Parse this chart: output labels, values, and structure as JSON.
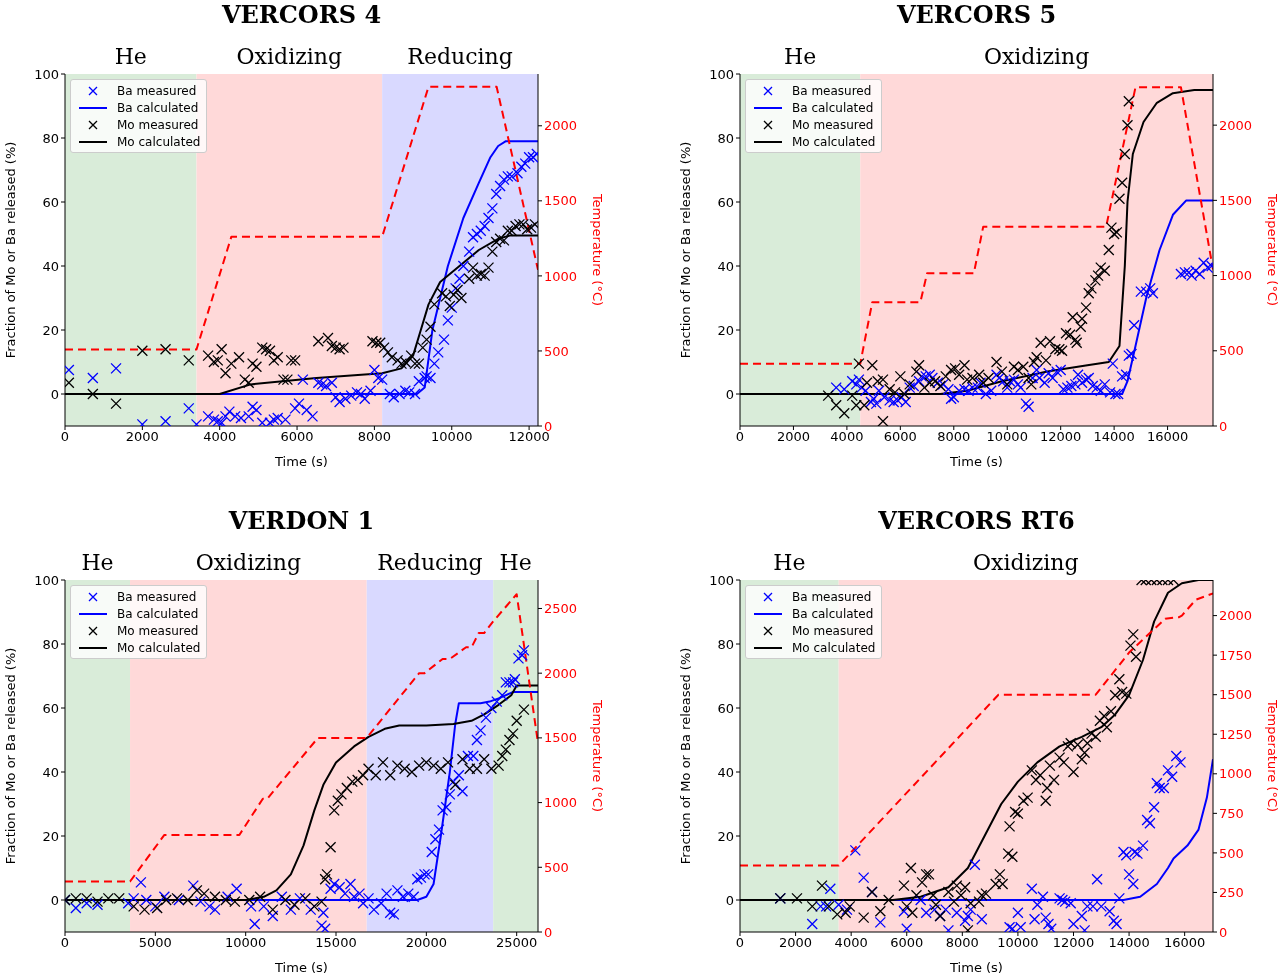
{
  "chart_data": [
    {
      "type": "line",
      "title": "VERCORS 4",
      "xlabel": "Time (s)",
      "ylabel": "Fraction of Mo or Ba released (%)",
      "y2label": "Temperature (°C)",
      "xlim": [
        0,
        12230
      ],
      "xticks": [
        0,
        2000,
        4000,
        6000,
        8000,
        10000,
        12000
      ],
      "ylim": [
        -10,
        100
      ],
      "yticks": [
        0,
        20,
        40,
        60,
        80,
        100
      ],
      "y2lim": [
        0,
        2345
      ],
      "y2ticks": [
        0,
        500,
        1000,
        1500,
        2000
      ],
      "legend": "top left",
      "bands": [
        {
          "axis": "x",
          "from": 0,
          "to": 3400,
          "label": "He",
          "color": "#d9ecd9"
        },
        {
          "axis": "x",
          "from": 3400,
          "to": 8200,
          "label": "Oxidizing",
          "color": "#ffd9d9"
        },
        {
          "axis": "x",
          "from": 8200,
          "to": 12230,
          "label": "Reducing",
          "color": "#d9d9ff"
        }
      ],
      "series": [
        {
          "name": "Ba measured",
          "type": "scatter",
          "marker": "cross",
          "color": "#0000ff",
          "x": [
            100,
            720,
            1320,
            2000,
            2600,
            3200,
            3400,
            3700,
            3850,
            3950,
            4050,
            4150,
            4250,
            4400,
            4550,
            4750,
            4850,
            4950,
            5100,
            5300,
            5400,
            5500,
            5700,
            5950,
            6050,
            6150,
            6250,
            6400,
            6550,
            6650,
            6750,
            6900,
            7000,
            7100,
            7250,
            7400,
            7550,
            7650,
            7750,
            7900,
            8000,
            8100,
            8200,
            8400,
            8500,
            8650,
            8800,
            8900,
            9050,
            9150,
            9300,
            9350,
            9450,
            9550,
            9650,
            9800,
            9900,
            10000,
            10100,
            10200,
            10300,
            10450,
            10550,
            10650,
            10750,
            10850,
            10950,
            11050,
            11150,
            11250,
            11350,
            11450,
            11550,
            11700,
            11800,
            11900,
            12000,
            12100,
            12200
          ],
          "values": [
            7.5,
            5,
            8,
            -9.5,
            -8.5,
            -4.5,
            -9.5,
            -7,
            -8,
            -8.5,
            -9,
            -7,
            -5.5,
            -7,
            -7.5,
            -7,
            -4,
            -5,
            -9,
            -9,
            -8,
            -7.5,
            -8,
            -4.5,
            -3,
            4.5,
            -5,
            -7,
            3.5,
            3,
            2.5,
            3.5,
            -1,
            -2.5,
            -1.5,
            -0.5,
            0.5,
            0,
            -1.5,
            1,
            7.5,
            5,
            4.5,
            0,
            -1,
            0,
            1,
            0.5,
            0,
            4,
            5,
            5.5,
            5,
            9.5,
            13,
            17,
            23,
            27,
            33,
            36,
            40,
            44.5,
            49,
            50,
            51,
            52.5,
            55,
            58,
            62.5,
            65,
            67,
            68,
            68,
            69,
            71,
            72,
            74,
            74,
            75
          ]
        },
        {
          "name": "Ba calculated",
          "type": "line",
          "marker": "none",
          "line_style": "solid",
          "color": "#0000ff",
          "x": [
            0,
            9100,
            9300,
            9500,
            9900,
            10300,
            10700,
            11000,
            11200,
            11400,
            12230
          ],
          "values": [
            0,
            0,
            2,
            20,
            40,
            55,
            66,
            74,
            77.5,
            79,
            79
          ]
        },
        {
          "name": "Mo measured",
          "type": "scatter",
          "marker": "cross",
          "color": "#000000",
          "x": [
            100,
            720,
            1320,
            2000,
            2600,
            3200,
            3700,
            3850,
            3950,
            4050,
            4150,
            4300,
            4500,
            4650,
            4750,
            4850,
            4950,
            5100,
            5200,
            5300,
            5400,
            5500,
            5650,
            5750,
            5850,
            5950,
            6550,
            6800,
            6900,
            7000,
            7100,
            7200,
            7950,
            8050,
            8150,
            8250,
            8350,
            8450,
            8600,
            8700,
            8800,
            8950,
            9050,
            9150,
            9250,
            9350,
            9450,
            9550,
            9750,
            9850,
            9950,
            10050,
            10150,
            10250,
            10450,
            10550,
            10650,
            10750,
            10850,
            10950,
            11050,
            11150,
            11250,
            11350,
            11450,
            11550,
            11650,
            11750,
            11850,
            11950,
            12050,
            12150
          ],
          "values": [
            3.5,
            0,
            -3,
            13.5,
            14,
            10.5,
            12,
            10,
            10.5,
            14,
            6.5,
            9.5,
            11.5,
            4.5,
            3.5,
            9.5,
            8.5,
            14.5,
            14,
            13.5,
            10.5,
            11.5,
            4.5,
            4.5,
            10.5,
            10.5,
            16.5,
            17.5,
            15,
            14.5,
            14,
            14.5,
            16.5,
            16,
            16,
            14.5,
            13,
            11.5,
            10.5,
            9.5,
            10,
            12,
            9.5,
            9.5,
            14.5,
            17,
            21,
            28,
            31.5,
            30.5,
            27.5,
            31,
            32.5,
            30,
            36,
            39.5,
            37,
            37.5,
            37,
            39.5,
            44.5,
            47.5,
            48.5,
            48,
            51,
            51,
            52.5,
            53,
            53,
            51.5,
            52,
            53
          ]
        },
        {
          "name": "Mo calculated",
          "type": "line",
          "marker": "none",
          "line_style": "solid",
          "color": "#000000",
          "x": [
            0,
            4000,
            4800,
            6500,
            8200,
            8700,
            9000,
            9200,
            9400,
            9700,
            10200,
            10700,
            11200,
            11500,
            12230
          ],
          "values": [
            0,
            0,
            3,
            5,
            6.5,
            8,
            12,
            20,
            28,
            35,
            40,
            45,
            48.5,
            49.5,
            49.5
          ]
        },
        {
          "type": "line",
          "axis": "y2",
          "marker": "none",
          "line_style": "dashed",
          "color": "#ff0000",
          "x": [
            0,
            3400,
            4300,
            8200,
            9400,
            11160,
            12230
          ],
          "values": [
            510,
            510,
            1260,
            1260,
            2260,
            2260,
            1040
          ]
        }
      ]
    },
    {
      "type": "line",
      "title": "VERCORS 5",
      "xlabel": "Time (s)",
      "ylabel": "Fraction of Mo or Ba released (%)",
      "y2label": "Temperature (°C)",
      "xlim": [
        0,
        17700
      ],
      "xticks": [
        0,
        2000,
        4000,
        6000,
        8000,
        10000,
        12000,
        14000,
        16000
      ],
      "ylim": [
        -10,
        100
      ],
      "yticks": [
        0,
        20,
        40,
        60,
        80,
        100
      ],
      "y2lim": [
        0,
        2340
      ],
      "y2ticks": [
        0,
        500,
        1000,
        1500,
        2000
      ],
      "legend": "top left",
      "bands": [
        {
          "axis": "x",
          "from": 0,
          "to": 4500,
          "label": "He",
          "color": "#d9ecd9"
        },
        {
          "axis": "x",
          "from": 4500,
          "to": 17700,
          "label": "Oxidizing",
          "color": "#ffd9d9"
        }
      ],
      "series": [
        {
          "name": "Ba measured",
          "type": "scatter",
          "marker": "cross",
          "color": "#0000ff",
          "x": [
            3600,
            3900,
            4200,
            4350,
            4450,
            4550,
            4700,
            4900,
            5000,
            5100,
            5200,
            5400,
            5600,
            5750,
            5900,
            6050,
            6200,
            6350,
            6500,
            6700,
            6800,
            6950,
            7100,
            7200,
            7400,
            7600,
            7800,
            7900,
            8000,
            8200,
            8400,
            8550,
            8700,
            8900,
            9000,
            9200,
            9400,
            9600,
            9700,
            9850,
            10000,
            10100,
            10250,
            10400,
            10500,
            10700,
            10800,
            10950,
            11100,
            11200,
            11400,
            11550,
            11700,
            11850,
            12000,
            12100,
            12250,
            12400,
            12550,
            12650,
            12800,
            12950,
            13050,
            13200,
            13350,
            13500,
            13650,
            13850,
            13950,
            14050,
            14150,
            14300,
            14450,
            14550,
            14650,
            14750,
            15000,
            15200,
            15350,
            15450,
            16500,
            16650,
            16800,
            16900,
            17050,
            17200,
            17350,
            17500,
            17650
          ],
          "values": [
            2,
            1.5,
            4,
            3,
            4.5,
            2,
            1,
            -2.5,
            -1.5,
            -3,
            1,
            -1,
            -2,
            -2.5,
            -2,
            -1,
            -2.5,
            2,
            2.5,
            4,
            5.5,
            5.5,
            6,
            5,
            3.5,
            3,
            1.5,
            -1.5,
            -1,
            1,
            1.5,
            1,
            2,
            2,
            3.5,
            0,
            1,
            6,
            5,
            4,
            2,
            4,
            4.5,
            3,
            2,
            -3,
            -4,
            5,
            7.5,
            5,
            3.5,
            6.5,
            5,
            7,
            7.5,
            1.5,
            2,
            2.5,
            3,
            6,
            3.5,
            4.5,
            5,
            2.5,
            2,
            1,
            3,
            0.5,
            9.5,
            0,
            0,
            5.5,
            6,
            12,
            12.5,
            21.5,
            32,
            32,
            33,
            31.5,
            37.5,
            38,
            38,
            37,
            38.5,
            37.5,
            41,
            39.5,
            40
          ]
        },
        {
          "name": "Ba calculated",
          "type": "line",
          "marker": "none",
          "line_style": "solid",
          "color": "#0000ff",
          "x": [
            0,
            14300,
            14500,
            14800,
            15200,
            15700,
            16200,
            16700,
            17700
          ],
          "values": [
            0,
            0,
            4,
            15,
            30,
            45,
            56,
            60.5,
            60.5
          ]
        },
        {
          "name": "Mo measured",
          "type": "scatter",
          "marker": "cross",
          "color": "#000000",
          "x": [
            3300,
            3600,
            3900,
            4200,
            4350,
            4450,
            4650,
            4750,
            4950,
            5150,
            5350,
            5350,
            5600,
            5800,
            6000,
            6150,
            6350,
            6600,
            6700,
            6900,
            7100,
            7300,
            7500,
            7700,
            7900,
            8050,
            8200,
            8400,
            8500,
            8700,
            8950,
            9100,
            9300,
            9600,
            9800,
            10000,
            10250,
            10400,
            10600,
            10800,
            10900,
            11000,
            11100,
            11250,
            11450,
            11600,
            11800,
            11950,
            12050,
            12200,
            12350,
            12450,
            12550,
            12600,
            12750,
            12800,
            12950,
            13050,
            13150,
            13300,
            13400,
            13500,
            13650,
            13800,
            13900,
            14000,
            14100,
            14200,
            14300,
            14400,
            14500,
            14550
          ],
          "values": [
            -0.5,
            -3.5,
            -6,
            -0.5,
            -3.5,
            9.5,
            -3.5,
            3.5,
            9,
            4,
            -8.5,
            4.5,
            1.5,
            0.5,
            5.5,
            0,
            3,
            7,
            9,
            2,
            3.5,
            4,
            2.5,
            5.5,
            7.5,
            8,
            6,
            9,
            4.5,
            5,
            6,
            3.5,
            5,
            10,
            7,
            3,
            8.5,
            7.5,
            8.5,
            5,
            3,
            10,
            11.5,
            16,
            10.5,
            16.5,
            14,
            14,
            13.5,
            19,
            18.5,
            24,
            17,
            16,
            21,
            23.5,
            27,
            31.5,
            33,
            35.5,
            37,
            39.5,
            38.5,
            45,
            52,
            50,
            50.5,
            61,
            66,
            75,
            84,
            91.5
          ]
        },
        {
          "name": "Mo calculated",
          "type": "line",
          "marker": "none",
          "line_style": "solid",
          "color": "#000000",
          "x": [
            0,
            7500,
            8500,
            9800,
            11500,
            13000,
            13800,
            14200,
            14400,
            14500,
            14700,
            15100,
            15600,
            16200,
            17000,
            17700
          ],
          "values": [
            0,
            0,
            1,
            4,
            7,
            9,
            10,
            15,
            40,
            60,
            75,
            85,
            91,
            94,
            95,
            95
          ]
        },
        {
          "type": "line",
          "axis": "y2",
          "marker": "none",
          "line_style": "dashed",
          "color": "#ff0000",
          "x": [
            0,
            4500,
            4950,
            6750,
            7000,
            8750,
            9100,
            13700,
            14800,
            16500,
            17700
          ],
          "values": [
            414,
            414,
            823,
            823,
            1015,
            1015,
            1324,
            1324,
            2252,
            2252,
            1041
          ]
        }
      ]
    },
    {
      "type": "line",
      "title": "VERDON 1",
      "xlabel": "Time (s)",
      "ylabel": "Fraction of Mo or Ba released (%)",
      "y2label": "Temperature (°C)",
      "xlim": [
        0,
        26180
      ],
      "xticks": [
        0,
        5000,
        10000,
        15000,
        20000,
        25000
      ],
      "ylim": [
        -10,
        100
      ],
      "yticks": [
        0,
        20,
        40,
        60,
        80,
        100
      ],
      "y2lim": [
        0,
        2720
      ],
      "y2ticks": [
        0,
        500,
        1000,
        1500,
        2000,
        2500
      ],
      "legend": "top left",
      "bands": [
        {
          "axis": "x",
          "from": 0,
          "to": 3600,
          "label": "He",
          "color": "#d9ecd9"
        },
        {
          "axis": "x",
          "from": 3600,
          "to": 16700,
          "label": "Oxidizing",
          "color": "#ffd9d9"
        },
        {
          "axis": "x",
          "from": 16700,
          "to": 23700,
          "label": "Reducing",
          "color": "#d9d9ff"
        },
        {
          "axis": "x",
          "from": 23700,
          "to": 26180,
          "label": "He",
          "color": "#d9ecd9"
        }
      ],
      "series": [
        {
          "name": "Ba measured",
          "type": "scatter",
          "marker": "cross",
          "color": "#0000ff",
          "x": [
            0,
            600,
            1200,
            1800,
            3500,
            3800,
            4200,
            4500,
            5000,
            5500,
            6300,
            7100,
            7500,
            8000,
            8300,
            9000,
            9500,
            10300,
            10500,
            11000,
            11500,
            12000,
            12500,
            13000,
            13600,
            14200,
            14300,
            14400,
            14700,
            14900,
            15200,
            15500,
            15800,
            16000,
            16300,
            16500,
            16800,
            17100,
            17500,
            17800,
            18000,
            18200,
            18400,
            18700,
            19000,
            19300,
            19500,
            19700,
            19900,
            20100,
            20300,
            20500,
            20700,
            20900,
            21100,
            21300,
            21500,
            21800,
            22000,
            22300,
            22600,
            22800,
            23000,
            23300,
            23600,
            23900,
            24200,
            24400,
            24600,
            24800,
            24900,
            25100,
            25300,
            25400
          ],
          "values": [
            0,
            -2.5,
            -1,
            -1.5,
            -1,
            0.5,
            5.5,
            0,
            -2,
            1,
            0,
            4.5,
            -0.5,
            -2,
            -3,
            1,
            3.5,
            -2,
            -7.5,
            -2,
            -5,
            1,
            -3,
            0.5,
            -3,
            -8,
            -4,
            -9,
            3.5,
            5,
            4,
            2,
            5,
            1,
            2,
            -1,
            0.5,
            -3,
            -1,
            2,
            -4,
            -4.5,
            3,
            1,
            2,
            1,
            6.5,
            7,
            8,
            8,
            15,
            19,
            22,
            28,
            29,
            33,
            37,
            39,
            34,
            45,
            45,
            50,
            53,
            57,
            60,
            62,
            64,
            68,
            68,
            68,
            69,
            75.5,
            76.5,
            78
          ]
        },
        {
          "name": "Ba calculated",
          "type": "line",
          "marker": "none",
          "line_style": "solid",
          "color": "#0000ff",
          "x": [
            0,
            19500,
            20000,
            20400,
            20800,
            21300,
            21600,
            21800,
            23000,
            23500,
            24000,
            24800,
            26180
          ],
          "values": [
            0,
            0,
            1,
            5,
            20,
            40,
            55,
            61.5,
            61.5,
            62,
            63,
            65,
            65
          ]
        },
        {
          "name": "Mo measured",
          "type": "scatter",
          "marker": "cross",
          "color": "#000000",
          "x": [
            0,
            600,
            1200,
            1800,
            2400,
            3000,
            3800,
            4400,
            5100,
            5600,
            6200,
            6800,
            7300,
            7700,
            8300,
            8900,
            9400,
            10200,
            10800,
            11500,
            12200,
            12700,
            13300,
            13800,
            14200,
            14400,
            14500,
            14700,
            14900,
            15100,
            15300,
            15600,
            15900,
            16200,
            16500,
            16800,
            17200,
            17600,
            18000,
            18400,
            18800,
            19200,
            19600,
            20000,
            20400,
            20800,
            21200,
            21600,
            22000,
            22400,
            22800,
            23200,
            23600,
            24000,
            24200,
            24400,
            24600,
            24800,
            25000,
            25400
          ],
          "values": [
            0,
            0.5,
            0.5,
            -0.5,
            0.5,
            0.5,
            -2,
            -3,
            -2.5,
            0,
            0.5,
            0,
            3,
            2,
            1,
            0,
            -0.5,
            0,
            1,
            -3,
            0,
            -1.5,
            0.5,
            -2,
            -0.5,
            6.5,
            8,
            16.5,
            28,
            31,
            33,
            35,
            37,
            37.5,
            39,
            41,
            39,
            43,
            39,
            42,
            41,
            40,
            42,
            43,
            42,
            41,
            43,
            36,
            44,
            41,
            41,
            44,
            41,
            42,
            45,
            47,
            50,
            52,
            56,
            59.5
          ]
        },
        {
          "name": "Mo calculated",
          "type": "line",
          "marker": "none",
          "line_style": "solid",
          "color": "#000000",
          "x": [
            0,
            10000,
            11000,
            11700,
            12500,
            13200,
            13800,
            14300,
            15000,
            16000,
            16800,
            17700,
            18500,
            20000,
            21500,
            22500,
            23200,
            24000,
            24700,
            25000,
            26180
          ],
          "values": [
            0,
            0,
            1,
            3,
            8,
            17,
            28,
            36,
            43,
            48,
            51,
            53.5,
            54.5,
            54.5,
            55,
            56,
            58,
            61,
            64,
            67,
            67
          ]
        },
        {
          "type": "line",
          "axis": "y2",
          "marker": "none",
          "line_style": "dashed",
          "color": "#ff0000",
          "x": [
            0,
            3600,
            5500,
            9650,
            10950,
            11200,
            14000,
            16700,
            19600,
            19900,
            20900,
            21300,
            22200,
            22500,
            22900,
            23200,
            23700,
            25000,
            26180
          ],
          "values": [
            390,
            390,
            750,
            750,
            1030,
            1030,
            1500,
            1500,
            2000,
            2000,
            2110,
            2110,
            2200,
            2200,
            2310,
            2310,
            2400,
            2610,
            1460
          ]
        }
      ]
    },
    {
      "type": "line",
      "title": "VERCORS RT6",
      "xlabel": "Time (s)",
      "ylabel": "Fraction of Mo or Ba released (%)",
      "y2label": "Temperature (°C)",
      "xlim": [
        0,
        17020
      ],
      "xticks": [
        0,
        2000,
        4000,
        6000,
        8000,
        10000,
        12000,
        14000,
        16000
      ],
      "ylim": [
        -10,
        100
      ],
      "yticks": [
        0,
        20,
        40,
        60,
        80,
        100
      ],
      "y2lim": [
        0,
        2225
      ],
      "y2ticks": [
        0,
        250,
        500,
        750,
        1000,
        1250,
        1500,
        1750,
        2000
      ],
      "legend": "top left",
      "bands": [
        {
          "axis": "x",
          "from": 0,
          "to": 3550,
          "label": "He",
          "color": "#d9ecd9"
        },
        {
          "axis": "x",
          "from": 3550,
          "to": 17020,
          "label": "Oxidizing",
          "color": "#ffd9d9"
        }
      ],
      "series": [
        {
          "name": "Ba measured",
          "type": "scatter",
          "marker": "cross",
          "color": "#0000ff",
          "x": [
            1450,
            2600,
            2900,
            3100,
            3250,
            3550,
            3850,
            4150,
            4450,
            4750,
            5050,
            5900,
            6000,
            6500,
            6700,
            7000,
            7200,
            7400,
            7500,
            7800,
            8100,
            8200,
            8300,
            8450,
            8700,
            9700,
            9800,
            10000,
            10100,
            10500,
            10600,
            10700,
            10900,
            11000,
            11100,
            11200,
            11500,
            11600,
            11700,
            11900,
            12000,
            12300,
            12400,
            12500,
            12700,
            12850,
            13000,
            13300,
            13450,
            13550,
            13650,
            13800,
            13900,
            14000,
            14150,
            14200,
            14300,
            14500,
            14650,
            14750,
            14900,
            15000,
            15100,
            15250,
            15400,
            15550,
            15700,
            15850
          ],
          "values": [
            0.5,
            -7.5,
            -2,
            -2,
            3.5,
            -1.5,
            -3,
            15.5,
            7,
            2.5,
            -7,
            -3.5,
            -9,
            0,
            -4,
            -3,
            -5,
            -3,
            -9.5,
            -4,
            -6.5,
            -5,
            -3,
            11,
            -6,
            -8.5,
            -9,
            -4,
            -8.5,
            3.5,
            -6,
            -1.5,
            1,
            -5.5,
            -7.5,
            -9,
            0.5,
            0,
            -0.5,
            -1,
            -7.5,
            -5,
            -9.5,
            -2,
            -2,
            6.5,
            -2,
            -3.5,
            -6.5,
            -7.5,
            0.5,
            15,
            14,
            8,
            5,
            15,
            14.5,
            17,
            25,
            24,
            29,
            36.5,
            35,
            35,
            40.5,
            38.5,
            45,
            43
          ]
        },
        {
          "name": "Ba calculated",
          "type": "line",
          "marker": "none",
          "line_style": "solid",
          "color": "#0000ff",
          "x": [
            0,
            13800,
            14400,
            15000,
            15400,
            15600,
            16100,
            16500,
            16800,
            17020
          ],
          "values": [
            0,
            0,
            1,
            5,
            10,
            13,
            17,
            22,
            32,
            44
          ]
        },
        {
          "name": "Mo measured",
          "type": "scatter",
          "marker": "cross",
          "color": "#000000",
          "x": [
            1450,
            2050,
            2600,
            2950,
            3200,
            3500,
            3800,
            3950,
            4450,
            4750,
            5050,
            5350,
            5900,
            6000,
            6150,
            6200,
            6350,
            6550,
            6700,
            6800,
            6950,
            7050,
            7200,
            7500,
            7700,
            7800,
            7950,
            8100,
            8200,
            8300,
            8600,
            8700,
            8850,
            9200,
            9350,
            9450,
            9650,
            9800,
            9700,
            9900,
            10000,
            10200,
            10350,
            10500,
            10650,
            10800,
            11000,
            11050,
            11150,
            11300,
            11500,
            11650,
            11800,
            11900,
            12000,
            12150,
            12300,
            12400,
            12500,
            12650,
            12800,
            12950,
            13100,
            13200,
            13350,
            13500,
            13650,
            13750,
            13900,
            14050,
            14150,
            14250,
            14450,
            14600,
            14800,
            15000,
            15200,
            15400,
            15600
          ],
          "values": [
            0.5,
            0.5,
            -2,
            4.5,
            -2,
            -4.5,
            -4,
            -2,
            -5.5,
            2.5,
            -3.5,
            0,
            4.5,
            -2,
            10,
            -4,
            1.5,
            5.5,
            8,
            8,
            1.5,
            -1.5,
            -5,
            2.5,
            -0.5,
            4.5,
            1.5,
            4,
            -9.5,
            -1,
            -0.5,
            1.5,
            2,
            5,
            8,
            5,
            14.5,
            13.5,
            23,
            27.5,
            27,
            31,
            32,
            40.5,
            37.5,
            39,
            31,
            35,
            42,
            37.5,
            44.5,
            43,
            48,
            49,
            40,
            48.5,
            44,
            46,
            49,
            52,
            51,
            56,
            57.5,
            54,
            59,
            64,
            69,
            65,
            64.5,
            79.5,
            83,
            76,
            100,
            100,
            100,
            100,
            100,
            100,
            100
          ]
        },
        {
          "name": "Mo calculated",
          "type": "line",
          "marker": "none",
          "line_style": "solid",
          "color": "#000000",
          "x": [
            0,
            5500,
            6500,
            7500,
            8200,
            8800,
            9400,
            10000,
            10700,
            11500,
            12300,
            13000,
            13500,
            14000,
            14500,
            14900,
            15400,
            15900,
            16500,
            17020
          ],
          "values": [
            0,
            0,
            1,
            4,
            10,
            20,
            30,
            37,
            43,
            48,
            51,
            54,
            58,
            64,
            75,
            87,
            96,
            99,
            100,
            100
          ]
        },
        {
          "type": "line",
          "axis": "y2",
          "marker": "none",
          "line_style": "dashed",
          "color": "#ff0000",
          "x": [
            0,
            3550,
            9300,
            12800,
            14020,
            15300,
            15800,
            15900,
            16400,
            17020
          ],
          "values": [
            420,
            420,
            1500,
            1500,
            1770,
            1980,
            1990,
            2000,
            2100,
            2140
          ]
        }
      ]
    }
  ]
}
